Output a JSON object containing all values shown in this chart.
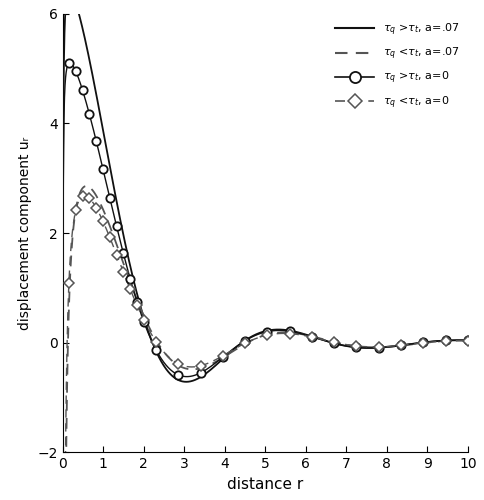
{
  "title": "",
  "xlabel": "distance r",
  "ylabel": "displacement component uᵣ",
  "xlim": [
    0,
    10
  ],
  "ylim": [
    -2,
    6
  ],
  "xticks": [
    0,
    1,
    2,
    3,
    4,
    5,
    6,
    7,
    8,
    9,
    10
  ],
  "yticks": [
    -2,
    0,
    2,
    4,
    6
  ],
  "background_color": "#ffffff"
}
